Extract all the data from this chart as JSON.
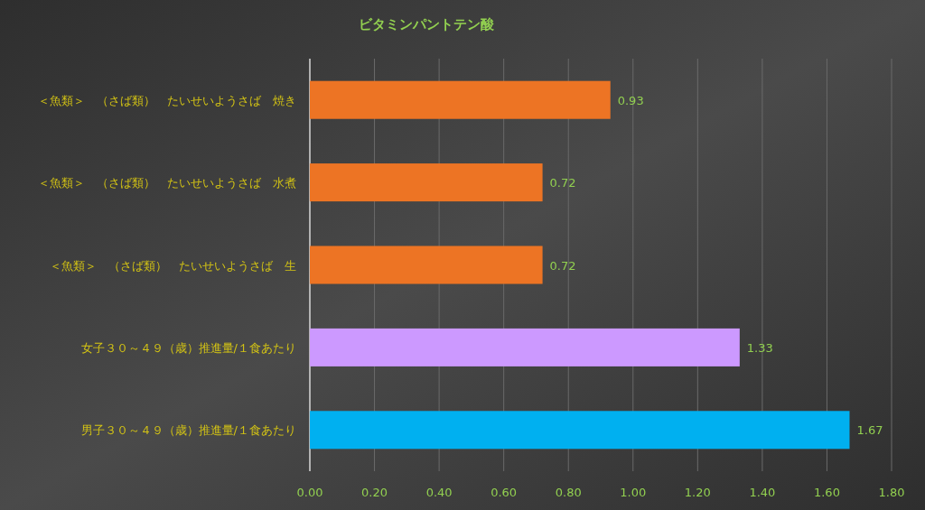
{
  "chart_data": {
    "type": "bar",
    "orientation": "horizontal",
    "title": "ビタミンパントテン酸",
    "categories": [
      "＜魚類＞　（さば類）　たいせいようさば　焼き",
      "＜魚類＞　（さば類）　たいせいようさば　水煮",
      "＜魚類＞　（さば類）　たいせいようさば　生",
      "女子３０～４９（歳）推進量/１食あたり",
      "男子３０～４９（歳）推進量/１食あたり"
    ],
    "values": [
      0.93,
      0.72,
      0.72,
      1.33,
      1.67
    ],
    "colors": [
      "#ed7424",
      "#ed7424",
      "#ed7424",
      "#cc99ff",
      "#00b0f0"
    ],
    "xlim": [
      0,
      1.8
    ],
    "xticks": [
      {
        "value": 0,
        "label": "0.00"
      },
      {
        "value": 0.2,
        "label": "0.20"
      },
      {
        "value": 0.4,
        "label": "0.40"
      },
      {
        "value": 0.6,
        "label": "0.60"
      },
      {
        "value": 0.8,
        "label": "0.80"
      },
      {
        "value": 1.0,
        "label": "1.00"
      },
      {
        "value": 1.2,
        "label": "1.20"
      },
      {
        "value": 1.4,
        "label": "1.40"
      },
      {
        "value": 1.6,
        "label": "1.60"
      },
      {
        "value": 1.8,
        "label": "1.80"
      }
    ],
    "grid": "x",
    "data_labels": true
  }
}
